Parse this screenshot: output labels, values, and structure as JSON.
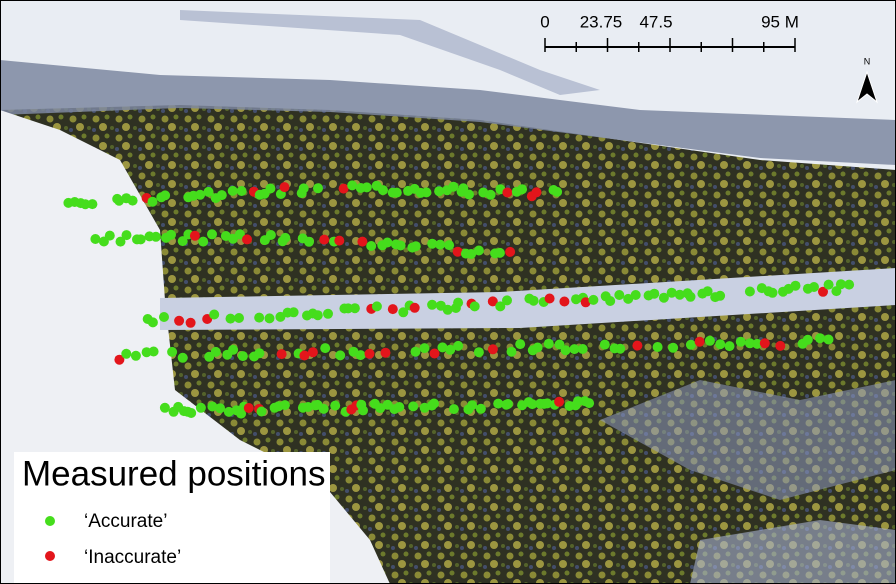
{
  "scale_bar": {
    "labels": [
      "0",
      "23.75",
      "47.5",
      "95 M"
    ]
  },
  "north_arrow": {
    "label": "N"
  },
  "legend": {
    "title": "Measured positions",
    "items": [
      {
        "label": "‘Accurate’",
        "color": "#45dd1c"
      },
      {
        "label": "‘Inaccurate’",
        "color": "#e3151b"
      }
    ]
  }
}
